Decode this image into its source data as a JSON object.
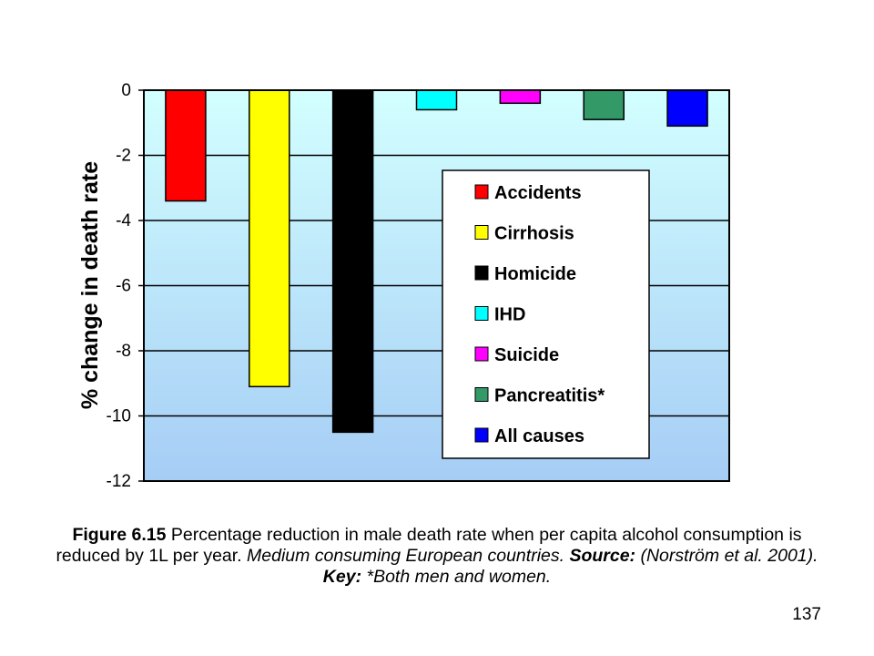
{
  "chart_data": {
    "type": "bar",
    "ylabel": "% change in death rate",
    "ylim": [
      -12,
      0
    ],
    "yticks": [
      0,
      -2,
      -4,
      -6,
      -8,
      -10,
      -12
    ],
    "grid": true,
    "legend_position": "center-right",
    "series": [
      {
        "name": "Accidents",
        "value": -3.4,
        "color": "#ff0000"
      },
      {
        "name": "Cirrhosis",
        "value": -9.1,
        "color": "#ffff00"
      },
      {
        "name": "Homicide",
        "value": -10.5,
        "color": "#000000"
      },
      {
        "name": "IHD",
        "value": -0.6,
        "color": "#00ffff"
      },
      {
        "name": "Suicide",
        "value": -0.4,
        "color": "#ff00ff"
      },
      {
        "name": "Pancreatitis*",
        "value": -0.9,
        "color": "#339966"
      },
      {
        "name": "All causes",
        "value": -1.1,
        "color": "#0000ff"
      }
    ]
  },
  "caption": {
    "figure_label": "Figure 6.15",
    "text1": "  Percentage reduction in male death rate when per capita alcohol consumption is reduced by 1L per year. ",
    "italic1": "Medium consuming European countries. ",
    "source_label": "Source:",
    "italic2": " (Norström et al. 2001).  ",
    "key_label": "Key:",
    "italic3": " *Both men and women."
  },
  "page_number": "137"
}
